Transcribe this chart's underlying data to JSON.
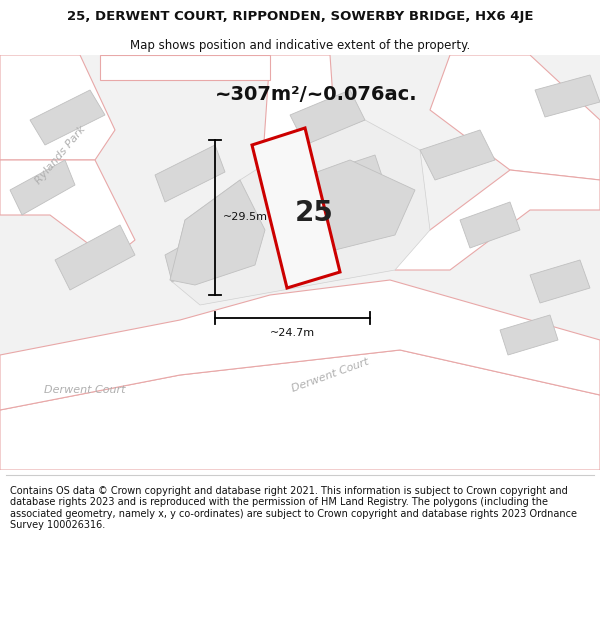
{
  "title_line1": "25, DERWENT COURT, RIPPONDEN, SOWERBY BRIDGE, HX6 4JE",
  "title_line2": "Map shows position and indicative extent of the property.",
  "area_text": "~307m²/~0.076ac.",
  "property_number": "25",
  "dim_height": "~29.5m",
  "dim_width": "~24.7m",
  "footer_text": "Contains OS data © Crown copyright and database right 2021. This information is subject to Crown copyright and database rights 2023 and is reproduced with the permission of HM Land Registry. The polygons (including the associated geometry, namely x, y co-ordinates) are subject to Crown copyright and database rights 2023 Ordnance Survey 100026316.",
  "map_bg": "#f2f2f2",
  "road_fill": "#ffffff",
  "building_fill": "#d8d8d8",
  "road_stroke": "#e8a8a8",
  "property_outline": "#cc0000",
  "property_fill": "#f8f8f8",
  "street_label_color": "#b0b0b0",
  "title_bg": "#ffffff",
  "footer_bg": "#ffffff",
  "title_fontsize": 9.5,
  "subtitle_fontsize": 8.5,
  "area_fontsize": 14,
  "number_fontsize": 20,
  "dim_fontsize": 8,
  "street_fontsize": 8,
  "footer_fontsize": 7
}
